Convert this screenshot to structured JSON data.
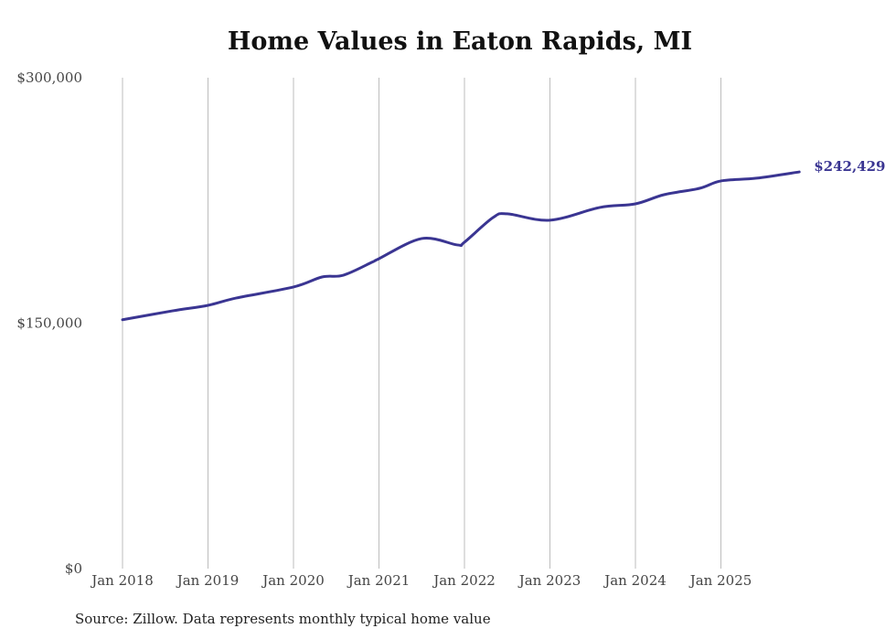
{
  "chart_data": {
    "type": "line",
    "title": "Home Values in Eaton Rapids, MI",
    "source": "Source: Zillow. Data represents monthly typical home value",
    "xlabel": "",
    "ylabel": "",
    "ylim": [
      0,
      300000
    ],
    "y_ticks": [
      {
        "value": 0,
        "label": "$0"
      },
      {
        "value": 150000,
        "label": "$150,000"
      },
      {
        "value": 300000,
        "label": "$300,000"
      }
    ],
    "x_ticks": [
      {
        "month_index": 0,
        "label": "Jan 2018"
      },
      {
        "month_index": 12,
        "label": "Jan 2019"
      },
      {
        "month_index": 24,
        "label": "Jan 2020"
      },
      {
        "month_index": 36,
        "label": "Jan 2021"
      },
      {
        "month_index": 48,
        "label": "Jan 2022"
      },
      {
        "month_index": 60,
        "label": "Jan 2023"
      },
      {
        "month_index": 72,
        "label": "Jan 2024"
      },
      {
        "month_index": 84,
        "label": "Jan 2025"
      }
    ],
    "grid": "vertical",
    "line_color": "#3a3592",
    "series": [
      {
        "name": "Typical home value",
        "points": [
          {
            "month_index": 0,
            "date": "Jan 2018",
            "value": 152100
          },
          {
            "month_index": 7,
            "date": "Aug 2018",
            "value": 157500
          },
          {
            "month_index": 12,
            "date": "Jan 2019",
            "value": 160900
          },
          {
            "month_index": 16,
            "date": "May 2019",
            "value": 165400
          },
          {
            "month_index": 24,
            "date": "Jan 2020",
            "value": 172100
          },
          {
            "month_index": 28,
            "date": "May 2020",
            "value": 178200
          },
          {
            "month_index": 31,
            "date": "Aug 2020",
            "value": 179300
          },
          {
            "month_index": 35,
            "date": "Dec 2020",
            "value": 187200
          },
          {
            "month_index": 36,
            "date": "Jan 2021",
            "value": 189400
          },
          {
            "month_index": 42,
            "date": "Jul 2021",
            "value": 201700
          },
          {
            "month_index": 47,
            "date": "Dec 2021",
            "value": 197800
          },
          {
            "month_index": 48,
            "date": "Jan 2022",
            "value": 199500
          },
          {
            "month_index": 52,
            "date": "May 2022",
            "value": 214500
          },
          {
            "month_index": 54,
            "date": "Jul 2022",
            "value": 216800
          },
          {
            "month_index": 60,
            "date": "Jan 2023",
            "value": 212900
          },
          {
            "month_index": 67,
            "date": "Aug 2023",
            "value": 220700
          },
          {
            "month_index": 72,
            "date": "Jan 2024",
            "value": 222900
          },
          {
            "month_index": 76,
            "date": "May 2024",
            "value": 228500
          },
          {
            "month_index": 81,
            "date": "Oct 2024",
            "value": 232400
          },
          {
            "month_index": 84,
            "date": "Jan 2025",
            "value": 236900
          },
          {
            "month_index": 89,
            "date": "Jun 2025",
            "value": 238600
          },
          {
            "month_index": 95,
            "date": "Dec 2025",
            "value": 242429
          }
        ]
      }
    ],
    "end_label": "$242,429"
  }
}
